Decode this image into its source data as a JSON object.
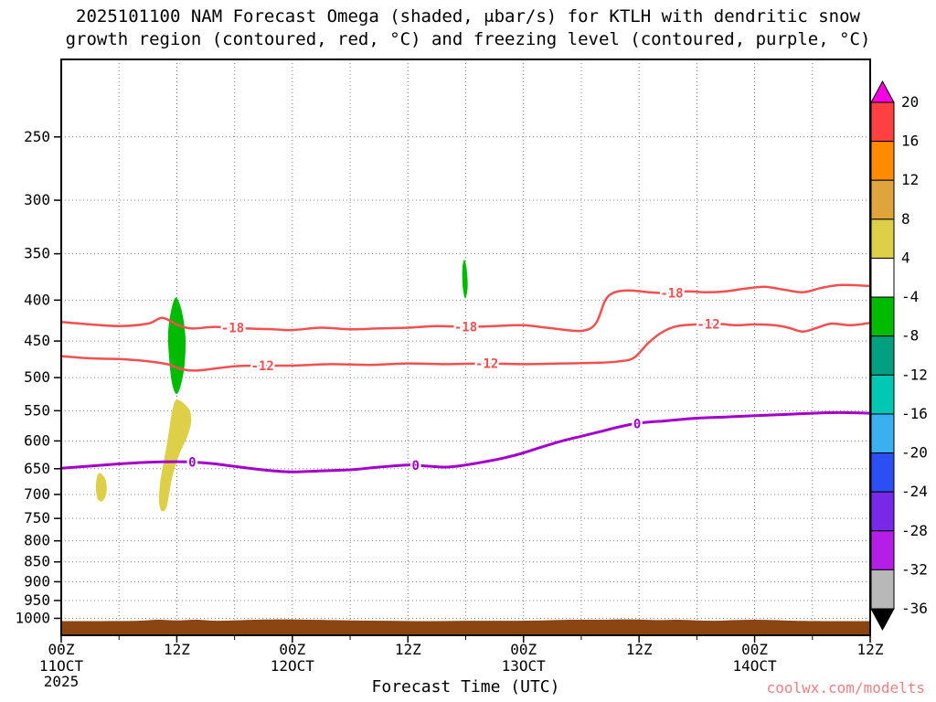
{
  "chart_data": {
    "type": "contour-cross-section",
    "title_line1": "2025101100 NAM Forecast Omega (shaded, μbar/s) for KTLH with dendritic snow",
    "title_line2": "growth region (contoured, red, °C) and freezing level (contoured, purple, °C)",
    "xlabel": "Forecast Time (UTC)",
    "watermark": "coolwx.com/modelts",
    "x_axis": {
      "unit": "hours",
      "range": [
        0,
        84
      ],
      "tick_step_hours": 12,
      "minor_step_hours": 6,
      "tick_labels": [
        "00Z",
        "12Z",
        "00Z",
        "12Z",
        "00Z",
        "12Z",
        "00Z",
        "12Z"
      ],
      "date_labels": [
        {
          "hour": 0,
          "lines": [
            "11OCT",
            "2025"
          ]
        },
        {
          "hour": 24,
          "lines": [
            "12OCT"
          ]
        },
        {
          "hour": 48,
          "lines": [
            "13OCT"
          ]
        },
        {
          "hour": 72,
          "lines": [
            "14OCT"
          ]
        }
      ]
    },
    "y_axis": {
      "unit": "hPa",
      "scale": "log",
      "top_hPa": 200,
      "bottom_hPa": 1050,
      "tick_labels": [
        "250",
        "300",
        "350",
        "400",
        "450",
        "500",
        "550",
        "600",
        "650",
        "700",
        "750",
        "800",
        "850",
        "900",
        "950",
        "1000"
      ]
    },
    "contours": [
      {
        "id": "dendritic-minus18",
        "value": -18,
        "label": "-18",
        "color": "#f25050",
        "width": 2.5,
        "label_hours": [
          17.8,
          42.0,
          63.4
        ],
        "points": [
          [
            0,
            426
          ],
          [
            3,
            429
          ],
          [
            6,
            431
          ],
          [
            9,
            428
          ],
          [
            10.5,
            421
          ],
          [
            12,
            429
          ],
          [
            13.5,
            434
          ],
          [
            16,
            432
          ],
          [
            19,
            434
          ],
          [
            22,
            435
          ],
          [
            24,
            436
          ],
          [
            27,
            433
          ],
          [
            30,
            435
          ],
          [
            33,
            434
          ],
          [
            36,
            433
          ],
          [
            39,
            431
          ],
          [
            42,
            432
          ],
          [
            45,
            431
          ],
          [
            48,
            430
          ],
          [
            51,
            434
          ],
          [
            54,
            437
          ],
          [
            55.5,
            428
          ],
          [
            56.5,
            400
          ],
          [
            57.5,
            391
          ],
          [
            59,
            389
          ],
          [
            61,
            391
          ],
          [
            63,
            392
          ],
          [
            65,
            390
          ],
          [
            67,
            391
          ],
          [
            69,
            390
          ],
          [
            71,
            387
          ],
          [
            73,
            385
          ],
          [
            75,
            388
          ],
          [
            77,
            391
          ],
          [
            79,
            386
          ],
          [
            81,
            383
          ],
          [
            84,
            384
          ]
        ]
      },
      {
        "id": "dendritic-minus12",
        "value": -12,
        "label": "-12",
        "color": "#f25050",
        "width": 2.5,
        "label_hours": [
          20.9,
          44.2,
          67.2
        ],
        "points": [
          [
            0,
            470
          ],
          [
            3,
            473
          ],
          [
            6,
            474
          ],
          [
            9,
            477
          ],
          [
            11,
            481
          ],
          [
            12.5,
            488
          ],
          [
            14,
            490
          ],
          [
            16,
            487
          ],
          [
            18,
            484
          ],
          [
            20,
            483
          ],
          [
            24,
            483
          ],
          [
            28,
            481
          ],
          [
            32,
            482
          ],
          [
            36,
            480
          ],
          [
            40,
            481
          ],
          [
            44,
            480
          ],
          [
            48,
            481
          ],
          [
            52,
            480
          ],
          [
            56,
            479
          ],
          [
            58,
            477
          ],
          [
            59.5,
            472
          ],
          [
            61,
            452
          ],
          [
            62.5,
            438
          ],
          [
            64,
            431
          ],
          [
            66,
            429
          ],
          [
            68,
            428
          ],
          [
            70,
            430
          ],
          [
            72,
            429
          ],
          [
            74,
            430
          ],
          [
            75.5,
            433
          ],
          [
            77,
            438
          ],
          [
            78.5,
            433
          ],
          [
            80,
            428
          ],
          [
            82,
            430
          ],
          [
            84,
            427
          ]
        ]
      },
      {
        "id": "freezing-level",
        "value": 0,
        "label": "0",
        "color": "#a400cc",
        "width": 3,
        "label_hours": [
          13.6,
          36.8,
          59.8
        ],
        "points": [
          [
            0,
            649
          ],
          [
            3,
            645
          ],
          [
            6,
            641
          ],
          [
            9,
            638
          ],
          [
            12,
            637
          ],
          [
            14,
            638
          ],
          [
            16,
            641
          ],
          [
            19,
            648
          ],
          [
            22,
            654
          ],
          [
            24,
            656
          ],
          [
            27,
            654
          ],
          [
            30,
            652
          ],
          [
            33,
            647
          ],
          [
            36,
            643
          ],
          [
            38,
            645
          ],
          [
            40,
            647
          ],
          [
            42,
            643
          ],
          [
            44,
            637
          ],
          [
            46,
            630
          ],
          [
            48,
            621
          ],
          [
            50,
            610
          ],
          [
            52,
            600
          ],
          [
            54,
            592
          ],
          [
            56,
            584
          ],
          [
            58,
            576
          ],
          [
            60,
            570
          ],
          [
            63,
            566
          ],
          [
            66,
            562
          ],
          [
            69,
            560
          ],
          [
            72,
            558
          ],
          [
            75,
            556
          ],
          [
            78,
            554
          ],
          [
            81,
            553
          ],
          [
            84,
            554
          ]
        ]
      }
    ],
    "shaded_regions": [
      {
        "id": "omega-upward-green",
        "omega_range": [
          -8,
          -4
        ],
        "color": "#00bb00",
        "polygons": [
          [
            [
              11.9,
              397
            ],
            [
              12.5,
              412
            ],
            [
              12.9,
              445
            ],
            [
              12.8,
              482
            ],
            [
              12.4,
              512
            ],
            [
              11.95,
              524
            ],
            [
              11.5,
              508
            ],
            [
              11.2,
              472
            ],
            [
              11.1,
              440
            ],
            [
              11.4,
              413
            ]
          ],
          [
            [
              41.85,
              356
            ],
            [
              42.1,
              366
            ],
            [
              42.2,
              386
            ],
            [
              41.95,
              398
            ],
            [
              41.7,
              386
            ],
            [
              41.65,
              366
            ]
          ]
        ]
      },
      {
        "id": "omega-downward-yellow",
        "omega_range": [
          4,
          8
        ],
        "color": "#decf48",
        "polygons": [
          [
            [
              12.0,
              533
            ],
            [
              13.2,
              546
            ],
            [
              13.5,
              566
            ],
            [
              13.1,
              592
            ],
            [
              12.3,
              622
            ],
            [
              11.6,
              660
            ],
            [
              11.2,
              700
            ],
            [
              10.9,
              728
            ],
            [
              10.4,
              734
            ],
            [
              10.15,
              712
            ],
            [
              10.3,
              672
            ],
            [
              10.8,
              622
            ],
            [
              11.2,
              582
            ],
            [
              11.5,
              552
            ]
          ],
          [
            [
              4.0,
              658
            ],
            [
              4.6,
              671
            ],
            [
              4.7,
              696
            ],
            [
              4.3,
              713
            ],
            [
              3.8,
              710
            ],
            [
              3.6,
              688
            ],
            [
              3.7,
              667
            ]
          ]
        ]
      }
    ],
    "surface": {
      "color": "#8b4513",
      "top_edge": [
        [
          0,
          1008
        ],
        [
          4,
          1008
        ],
        [
          8,
          1007
        ],
        [
          10,
          1004
        ],
        [
          12,
          1006
        ],
        [
          14,
          1004
        ],
        [
          16,
          1007
        ],
        [
          18,
          1006
        ],
        [
          20,
          1004
        ],
        [
          23,
          1003
        ],
        [
          26,
          1004
        ],
        [
          30,
          1006
        ],
        [
          34,
          1007
        ],
        [
          38,
          1008
        ],
        [
          42,
          1007
        ],
        [
          46,
          1007
        ],
        [
          50,
          1006
        ],
        [
          53,
          1004
        ],
        [
          56,
          1004
        ],
        [
          59,
          1003
        ],
        [
          62,
          1005
        ],
        [
          64,
          1004
        ],
        [
          66,
          1006
        ],
        [
          68,
          1007
        ],
        [
          70,
          1005
        ],
        [
          72,
          1004
        ],
        [
          74,
          1005
        ],
        [
          76,
          1007
        ],
        [
          80,
          1008
        ],
        [
          84,
          1008
        ]
      ]
    },
    "colorbar": {
      "labels": [
        "20",
        "16",
        "12",
        "8",
        "4",
        "-4",
        "-8",
        "-12",
        "-16",
        "-20",
        "-24",
        "-28",
        "-32",
        "-36"
      ],
      "colors": [
        "#f400e0",
        "#ff4040",
        "#ff8c00",
        "#dfa53c",
        "#decf48",
        "#ffffff",
        "#00bb00",
        "#00a080",
        "#00c8b4",
        "#3ab0f0",
        "#2a50f5",
        "#7a28e8",
        "#b41ee6",
        "#b8b8b8",
        "#000000"
      ],
      "arrow_ends": true
    }
  }
}
